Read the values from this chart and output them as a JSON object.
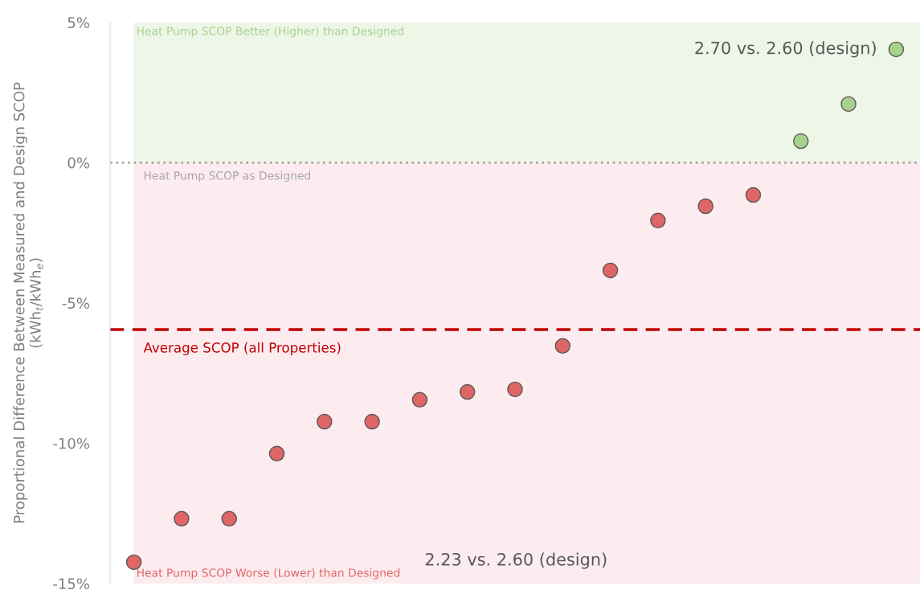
{
  "chart_data": {
    "type": "scatter",
    "ylabel": "Proportional Difference Between Measured and Design SCOP\n(kWh$_{t}$/kWh$_{e}$)",
    "categories": [
      null,
      null,
      null,
      null,
      null,
      null,
      null,
      null,
      null,
      null,
      null,
      null,
      null,
      null,
      null,
      null,
      null
    ],
    "values": [
      -14.24,
      -12.69,
      -12.69,
      -10.37,
      -9.23,
      -9.23,
      -8.45,
      -8.17,
      -8.08,
      -6.53,
      -3.84,
      -2.06,
      -1.55,
      -1.15,
      0.77,
      2.09,
      4.04
    ],
    "colors": [
      "#e06666",
      "#e06666",
      "#e06666",
      "#e06666",
      "#e06666",
      "#e06666",
      "#e06666",
      "#e06666",
      "#e06666",
      "#e06666",
      "#e06666",
      "#e06666",
      "#e06666",
      "#e06666",
      "#a9d18e",
      "#a9d18e",
      "#a9d18e"
    ],
    "marker": "circle",
    "ylim": [
      -15,
      5
    ],
    "yticks": [
      {
        "value": 5,
        "label": "5%"
      },
      {
        "value": 0,
        "label": "0%"
      },
      {
        "value": -5,
        "label": "-5%"
      },
      {
        "value": -10,
        "label": "-10%"
      },
      {
        "value": -15,
        "label": "-15%"
      }
    ],
    "tick_labels": "y",
    "grid": false,
    "bands": [
      {
        "axis": "y",
        "from": 0,
        "to": 5,
        "label": "Heat Pump SCOP Better (Higher) than Designed",
        "color": "#eef6e8"
      },
      {
        "axis": "y",
        "from": -15,
        "to": 0,
        "label": "Heat Pump SCOP Worse (Lower) than Designed",
        "color": "#fcecef"
      }
    ],
    "ref_lines": [
      {
        "axis": "y",
        "value": 0,
        "label": "Heat Pump SCOP as Designed",
        "color": "#a6a6a6",
        "line_style": "dotted"
      },
      {
        "axis": "y",
        "value": -5.95,
        "label": "Average SCOP (all Properties)",
        "color": "#c00000",
        "line_style": "dashed"
      }
    ],
    "annotations": [
      "2.70 vs. 2.60 (design)",
      "2.23 vs. 2.60 (design)"
    ]
  }
}
